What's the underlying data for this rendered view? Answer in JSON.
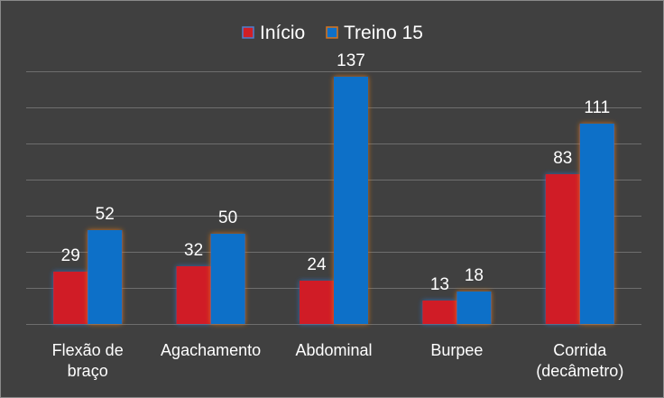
{
  "chart_data": {
    "type": "bar",
    "categories": [
      [
        "Flexão de",
        "braço"
      ],
      [
        "Agachamento"
      ],
      [
        "Abdominal"
      ],
      [
        "Burpee"
      ],
      [
        "Corrida",
        "(decâmetro)"
      ]
    ],
    "series": [
      {
        "name": "Início",
        "values": [
          29,
          32,
          24,
          13,
          83
        ],
        "color": "#d01f25"
      },
      {
        "name": "Treino 15",
        "values": [
          52,
          50,
          137,
          18,
          111
        ],
        "color": "#0f70c8"
      }
    ],
    "ylim": [
      0,
      140
    ],
    "y_grid_step": 20,
    "grid": true,
    "legend": "top-center",
    "y_axis_labels_shown": false
  }
}
